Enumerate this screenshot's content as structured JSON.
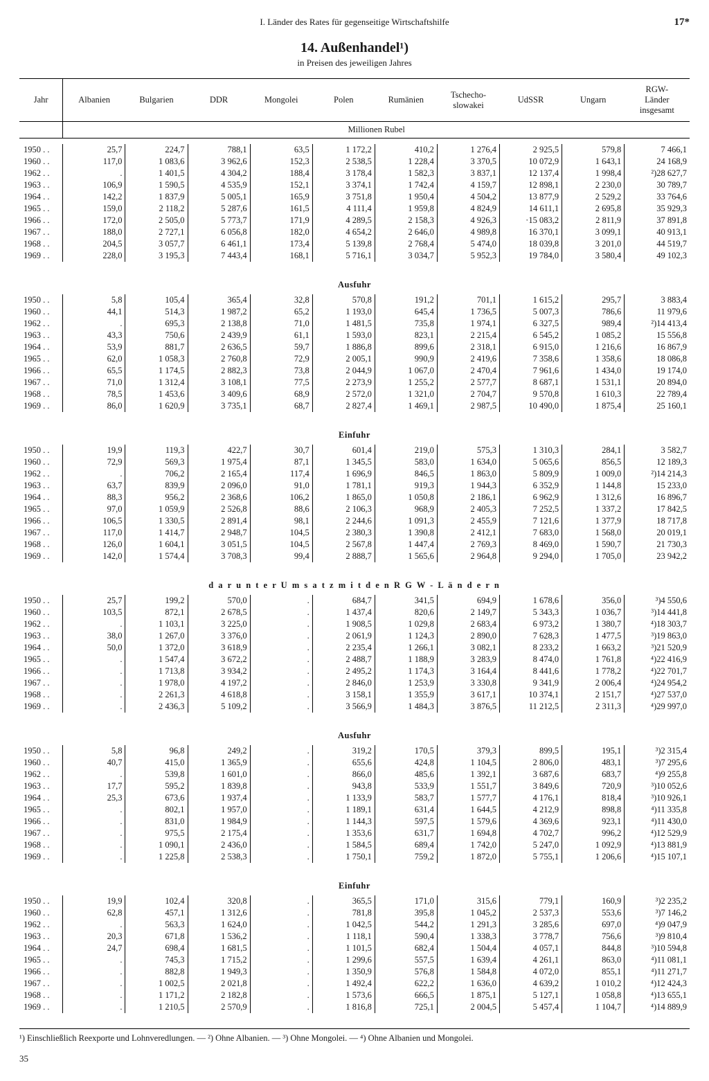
{
  "page": {
    "running_head": "I. Länder des Rates für gegenseitige Wirtschaftshilfe",
    "page_number": "17*",
    "title": "14. Außenhandel¹)",
    "subtitle": "in Preisen des jeweiligen Jahres",
    "unit_label": "Millionen Rubel",
    "footer_page": "35",
    "footnotes": "¹) Einschließlich Reexporte und Lohnveredlungen. — ²) Ohne Albanien. — ³) Ohne Mongolei. — ⁴) Ohne Albanien und Mongolei."
  },
  "columns": [
    "Jahr",
    "Albanien",
    "Bulgarien",
    "DDR",
    "Mongolei",
    "Polen",
    "Rumänien",
    "Tschecho-\nslowakei",
    "UdSSR",
    "Ungarn",
    "RGW-\nLänder\ninsgesamt"
  ],
  "years": [
    "1950 . .",
    "1960 . .",
    "1962 . .",
    "1963 . .",
    "1964 . .",
    "1965 . .",
    "1966 . .",
    "1967 . .",
    "1968 . .",
    "1969 . ."
  ],
  "sections": [
    {
      "label": "",
      "rows": [
        [
          "25,7",
          "224,7",
          "788,1",
          "63,5",
          "1 172,2",
          "410,2",
          "1 276,4",
          "2 925,5",
          "579,8",
          "7 466,1"
        ],
        [
          "117,0",
          "1 083,6",
          "3 962,6",
          "152,3",
          "2 538,5",
          "1 228,4",
          "3 370,5",
          "10 072,9",
          "1 643,1",
          "24 168,9"
        ],
        [
          ".",
          "1 401,5",
          "4 304,2",
          "188,4",
          "3 178,4",
          "1 582,3",
          "3 837,1",
          "12 137,4",
          "1 998,4",
          "²)28 627,7"
        ],
        [
          "106,9",
          "1 590,5",
          "4 535,9",
          "152,1",
          "3 374,1",
          "1 742,4",
          "4 159,7",
          "12 898,1",
          "2 230,0",
          "30 789,7"
        ],
        [
          "142,2",
          "1 837,9",
          "5 005,1",
          "165,9",
          "3 751,8",
          "1 950,4",
          "4 504,2",
          "13 877,9",
          "2 529,2",
          "33 764,6"
        ],
        [
          "159,0",
          "2 118,2",
          "5 287,6",
          "161,5",
          "4 111,4",
          "1 959,8",
          "4 824,9",
          "14 611,1",
          "2 695,8",
          "35 929,3"
        ],
        [
          "172,0",
          "2 505,0",
          "5 773,7",
          "171,9",
          "4 289,5",
          "2 158,3",
          "4 926,3",
          "·15 083,2",
          "2 811,9",
          "37 891,8"
        ],
        [
          "188,0",
          "2 727,1",
          "6 056,8",
          "182,0",
          "4 654,2",
          "2 646,0",
          "4 989,8",
          "16 370,1",
          "3 099,1",
          "40 913,1"
        ],
        [
          "204,5",
          "3 057,7",
          "6 461,1",
          "173,4",
          "5 139,8",
          "2 768,4",
          "5 474,0",
          "18 039,8",
          "3 201,0",
          "44 519,7"
        ],
        [
          "228,0",
          "3 195,3",
          "7 443,4",
          "168,1",
          "5 716,1",
          "3 034,7",
          "5 952,3",
          "19 784,0",
          "3 580,4",
          "49 102,3"
        ]
      ]
    },
    {
      "label": "Ausfuhr",
      "rows": [
        [
          "5,8",
          "105,4",
          "365,4",
          "32,8",
          "570,8",
          "191,2",
          "701,1",
          "1 615,2",
          "295,7",
          "3 883,4"
        ],
        [
          "44,1",
          "514,3",
          "1 987,2",
          "65,2",
          "1 193,0",
          "645,4",
          "1 736,5",
          "5 007,3",
          "786,6",
          "11 979,6"
        ],
        [
          ".",
          "695,3",
          "2 138,8",
          "71,0",
          "1 481,5",
          "735,8",
          "1 974,1",
          "6 327,5",
          "989,4",
          "²)14 413,4"
        ],
        [
          "43,3",
          "750,6",
          "2 439,9",
          "61,1",
          "1 593,0",
          "823,1",
          "2 215,4",
          "6 545,2",
          "1 085,2",
          "15 556,8"
        ],
        [
          "53,9",
          "881,7",
          "2 636,5",
          "59,7",
          "1 886,8",
          "899,6",
          "2 318,1",
          "6 915,0",
          "1 216,6",
          "16 867,9"
        ],
        [
          "62,0",
          "1 058,3",
          "2 760,8",
          "72,9",
          "2 005,1",
          "990,9",
          "2 419,6",
          "7 358,6",
          "1 358,6",
          "18 086,8"
        ],
        [
          "65,5",
          "1 174,5",
          "2 882,3",
          "73,8",
          "2 044,9",
          "1 067,0",
          "2 470,4",
          "7 961,6",
          "1 434,0",
          "19 174,0"
        ],
        [
          "71,0",
          "1 312,4",
          "3 108,1",
          "77,5",
          "2 273,9",
          "1 255,2",
          "2 577,7",
          "8 687,1",
          "1 531,1",
          "20 894,0"
        ],
        [
          "78,5",
          "1 453,6",
          "3 409,6",
          "68,9",
          "2 572,0",
          "1 321,0",
          "2 704,7",
          "9 570,8",
          "1 610,3",
          "22 789,4"
        ],
        [
          "86,0",
          "1 620,9",
          "3 735,1",
          "68,7",
          "2 827,4",
          "1 469,1",
          "2 987,5",
          "10 490,0",
          "1 875,4",
          "25 160,1"
        ]
      ]
    },
    {
      "label": "Einfuhr",
      "rows": [
        [
          "19,9",
          "119,3",
          "422,7",
          "30,7",
          "601,4",
          "219,0",
          "575,3",
          "1 310,3",
          "284,1",
          "3 582,7"
        ],
        [
          "72,9",
          "569,3",
          "1 975,4",
          "87,1",
          "1 345,5",
          "583,0",
          "1 634,0",
          "5 065,6",
          "856,5",
          "12 189,3"
        ],
        [
          ".",
          "706,2",
          "2 165,4",
          "117,4",
          "1 696,9",
          "846,5",
          "1 863,0",
          "5 809,9",
          "1 009,0",
          "²)14 214,3"
        ],
        [
          "63,7",
          "839,9",
          "2 096,0",
          "91,0",
          "1 781,1",
          "919,3",
          "1 944,3",
          "6 352,9",
          "1 144,8",
          "15 233,0"
        ],
        [
          "88,3",
          "956,2",
          "2 368,6",
          "106,2",
          "1 865,0",
          "1 050,8",
          "2 186,1",
          "6 962,9",
          "1 312,6",
          "16 896,7"
        ],
        [
          "97,0",
          "1 059,9",
          "2 526,8",
          "88,6",
          "2 106,3",
          "968,9",
          "2 405,3",
          "7 252,5",
          "1 337,2",
          "17 842,5"
        ],
        [
          "106,5",
          "1 330,5",
          "2 891,4",
          "98,1",
          "2 244,6",
          "1 091,3",
          "2 455,9",
          "7 121,6",
          "1 377,9",
          "18 717,8"
        ],
        [
          "117,0",
          "1 414,7",
          "2 948,7",
          "104,5",
          "2 380,3",
          "1 390,8",
          "2 412,1",
          "7 683,0",
          "1 568,0",
          "20 019,1"
        ],
        [
          "126,0",
          "1 604,1",
          "3 051,5",
          "104,5",
          "2 567,8",
          "1 447,4",
          "2 769,3",
          "8 469,0",
          "1 590,7",
          "21 730,3"
        ],
        [
          "142,0",
          "1 574,4",
          "3 708,3",
          "99,4",
          "2 888,7",
          "1 565,6",
          "2 964,8",
          "9 294,0",
          "1 705,0",
          "23 942,2"
        ]
      ]
    },
    {
      "label": "d a r u n t e r  U m s a t z  m i t  d e n  R G W - L ä n d e r n",
      "spaced": true,
      "rows": [
        [
          "25,7",
          "199,2",
          "570,0",
          ".",
          "684,7",
          "341,5",
          "694,9",
          "1 678,6",
          "356,0",
          "³)4 550,6"
        ],
        [
          "103,5",
          "872,1",
          "2 678,5",
          ".",
          "1 437,4",
          "820,6",
          "2 149,7",
          "5 343,3",
          "1 036,7",
          "³)14 441,8"
        ],
        [
          ".",
          "1 103,1",
          "3 225,0",
          ".",
          "1 908,5",
          "1 029,8",
          "2 683,4",
          "6 973,2",
          "1 380,7",
          "⁴)18 303,7"
        ],
        [
          "38,0",
          "1 267,0",
          "3 376,0",
          ".",
          "2 061,9",
          "1 124,3",
          "2 890,0",
          "7 628,3",
          "1 477,5",
          "³)19 863,0"
        ],
        [
          "50,0",
          "1 372,0",
          "3 618,9",
          ".",
          "2 235,4",
          "1 266,1",
          "3 082,1",
          "8 233,2",
          "1 663,2",
          "³)21 520,9"
        ],
        [
          ".",
          "1 547,4",
          "3 672,2",
          ".",
          "2 488,7",
          "1 188,9",
          "3 283,9",
          "8 474,0",
          "1 761,8",
          "⁴)22 416,9"
        ],
        [
          ".",
          "1 713,8",
          "3 934,2",
          ".",
          "2 495,2",
          "1 174,3",
          "3 164,4",
          "8 441,6",
          "1 778,2",
          "⁴)22 701,7"
        ],
        [
          ".",
          "1 978,0",
          "4 197,2",
          ".",
          "2 846,0",
          "1 253,9",
          "3 330,8",
          "9 341,9",
          "2 006,4",
          "⁴)24 954,2"
        ],
        [
          ".",
          "2 261,3",
          "4 618,8",
          ".",
          "3 158,1",
          "1 355,9",
          "3 617,1",
          "10 374,1",
          "2 151,7",
          "⁴)27 537,0"
        ],
        [
          ".",
          "2 436,3",
          "5 109,2",
          ".",
          "3 566,9",
          "1 484,3",
          "3 876,5",
          "11 212,5",
          "2 311,3",
          "⁴)29 997,0"
        ]
      ]
    },
    {
      "label": "Ausfuhr",
      "rows": [
        [
          "5,8",
          "96,8",
          "249,2",
          ".",
          "319,2",
          "170,5",
          "379,3",
          "899,5",
          "195,1",
          "³)2 315,4"
        ],
        [
          "40,7",
          "415,0",
          "1 365,9",
          ".",
          "655,6",
          "424,8",
          "1 104,5",
          "2 806,0",
          "483,1",
          "³)7 295,6"
        ],
        [
          ".",
          "539,8",
          "1 601,0",
          ".",
          "866,0",
          "485,6",
          "1 392,1",
          "3 687,6",
          "683,7",
          "⁴)9 255,8"
        ],
        [
          "17,7",
          "595,2",
          "1 839,8",
          ".",
          "943,8",
          "533,9",
          "1 551,7",
          "3 849,6",
          "720,9",
          "³)10 052,6"
        ],
        [
          "25,3",
          "673,6",
          "1 937,4",
          ".",
          "1 133,9",
          "583,7",
          "1 577,7",
          "4 176,1",
          "818,4",
          "³)10 926,1"
        ],
        [
          ".",
          "802,1",
          "1 957,0",
          ".",
          "1 189,1",
          "631,4",
          "1 644,5",
          "4 212,9",
          "898,8",
          "⁴)11 335,8"
        ],
        [
          ".",
          "831,0",
          "1 984,9",
          ".",
          "1 144,3",
          "597,5",
          "1 579,6",
          "4 369,6",
          "923,1",
          "⁴)11 430,0"
        ],
        [
          ".",
          "975,5",
          "2 175,4",
          ".",
          "1 353,6",
          "631,7",
          "1 694,8",
          "4 702,7",
          "996,2",
          "⁴)12 529,9"
        ],
        [
          ".",
          "1 090,1",
          "2 436,0",
          ".",
          "1 584,5",
          "689,4",
          "1 742,0",
          "5 247,0",
          "1 092,9",
          "⁴)13 881,9"
        ],
        [
          ".",
          "1 225,8",
          "2 538,3",
          ".",
          "1 750,1",
          "759,2",
          "1 872,0",
          "5 755,1",
          "1 206,6",
          "⁴)15 107,1"
        ]
      ]
    },
    {
      "label": "Einfuhr",
      "rows": [
        [
          "19,9",
          "102,4",
          "320,8",
          ".",
          "365,5",
          "171,0",
          "315,6",
          "779,1",
          "160,9",
          "³)2 235,2"
        ],
        [
          "62,8",
          "457,1",
          "1 312,6",
          ".",
          "781,8",
          "395,8",
          "1 045,2",
          "2 537,3",
          "553,6",
          "³)7 146,2"
        ],
        [
          ".",
          "563,3",
          "1 624,0",
          ".",
          "1 042,5",
          "544,2",
          "1 291,3",
          "3 285,6",
          "697,0",
          "⁴)9 047,9"
        ],
        [
          "20,3",
          "671,8",
          "1 536,2",
          ".",
          "1 118,1",
          "590,4",
          "1 338,3",
          "3 778,7",
          "756,6",
          "³)9 810,4"
        ],
        [
          "24,7",
          "698,4",
          "1 681,5",
          ".",
          "1 101,5",
          "682,4",
          "1 504,4",
          "4 057,1",
          "844,8",
          "³)10 594,8"
        ],
        [
          ".",
          "745,3",
          "1 715,2",
          ".",
          "1 299,6",
          "557,5",
          "1 639,4",
          "4 261,1",
          "863,0",
          "⁴)11 081,1"
        ],
        [
          ".",
          "882,8",
          "1 949,3",
          ".",
          "1 350,9",
          "576,8",
          "1 584,8",
          "4 072,0",
          "855,1",
          "⁴)11 271,7"
        ],
        [
          ".",
          "1 002,5",
          "2 021,8",
          ".",
          "1 492,4",
          "622,2",
          "1 636,0",
          "4 639,2",
          "1 010,2",
          "⁴)12 424,3"
        ],
        [
          ".",
          "1 171,2",
          "2 182,8",
          ".",
          "1 573,6",
          "666,5",
          "1 875,1",
          "5 127,1",
          "1 058,8",
          "⁴)13 655,1"
        ],
        [
          ".",
          "1 210,5",
          "2 570,9",
          ".",
          "1 816,8",
          "725,1",
          "2 004,5",
          "5 457,4",
          "1 104,7",
          "⁴)14 889,9"
        ]
      ]
    }
  ]
}
